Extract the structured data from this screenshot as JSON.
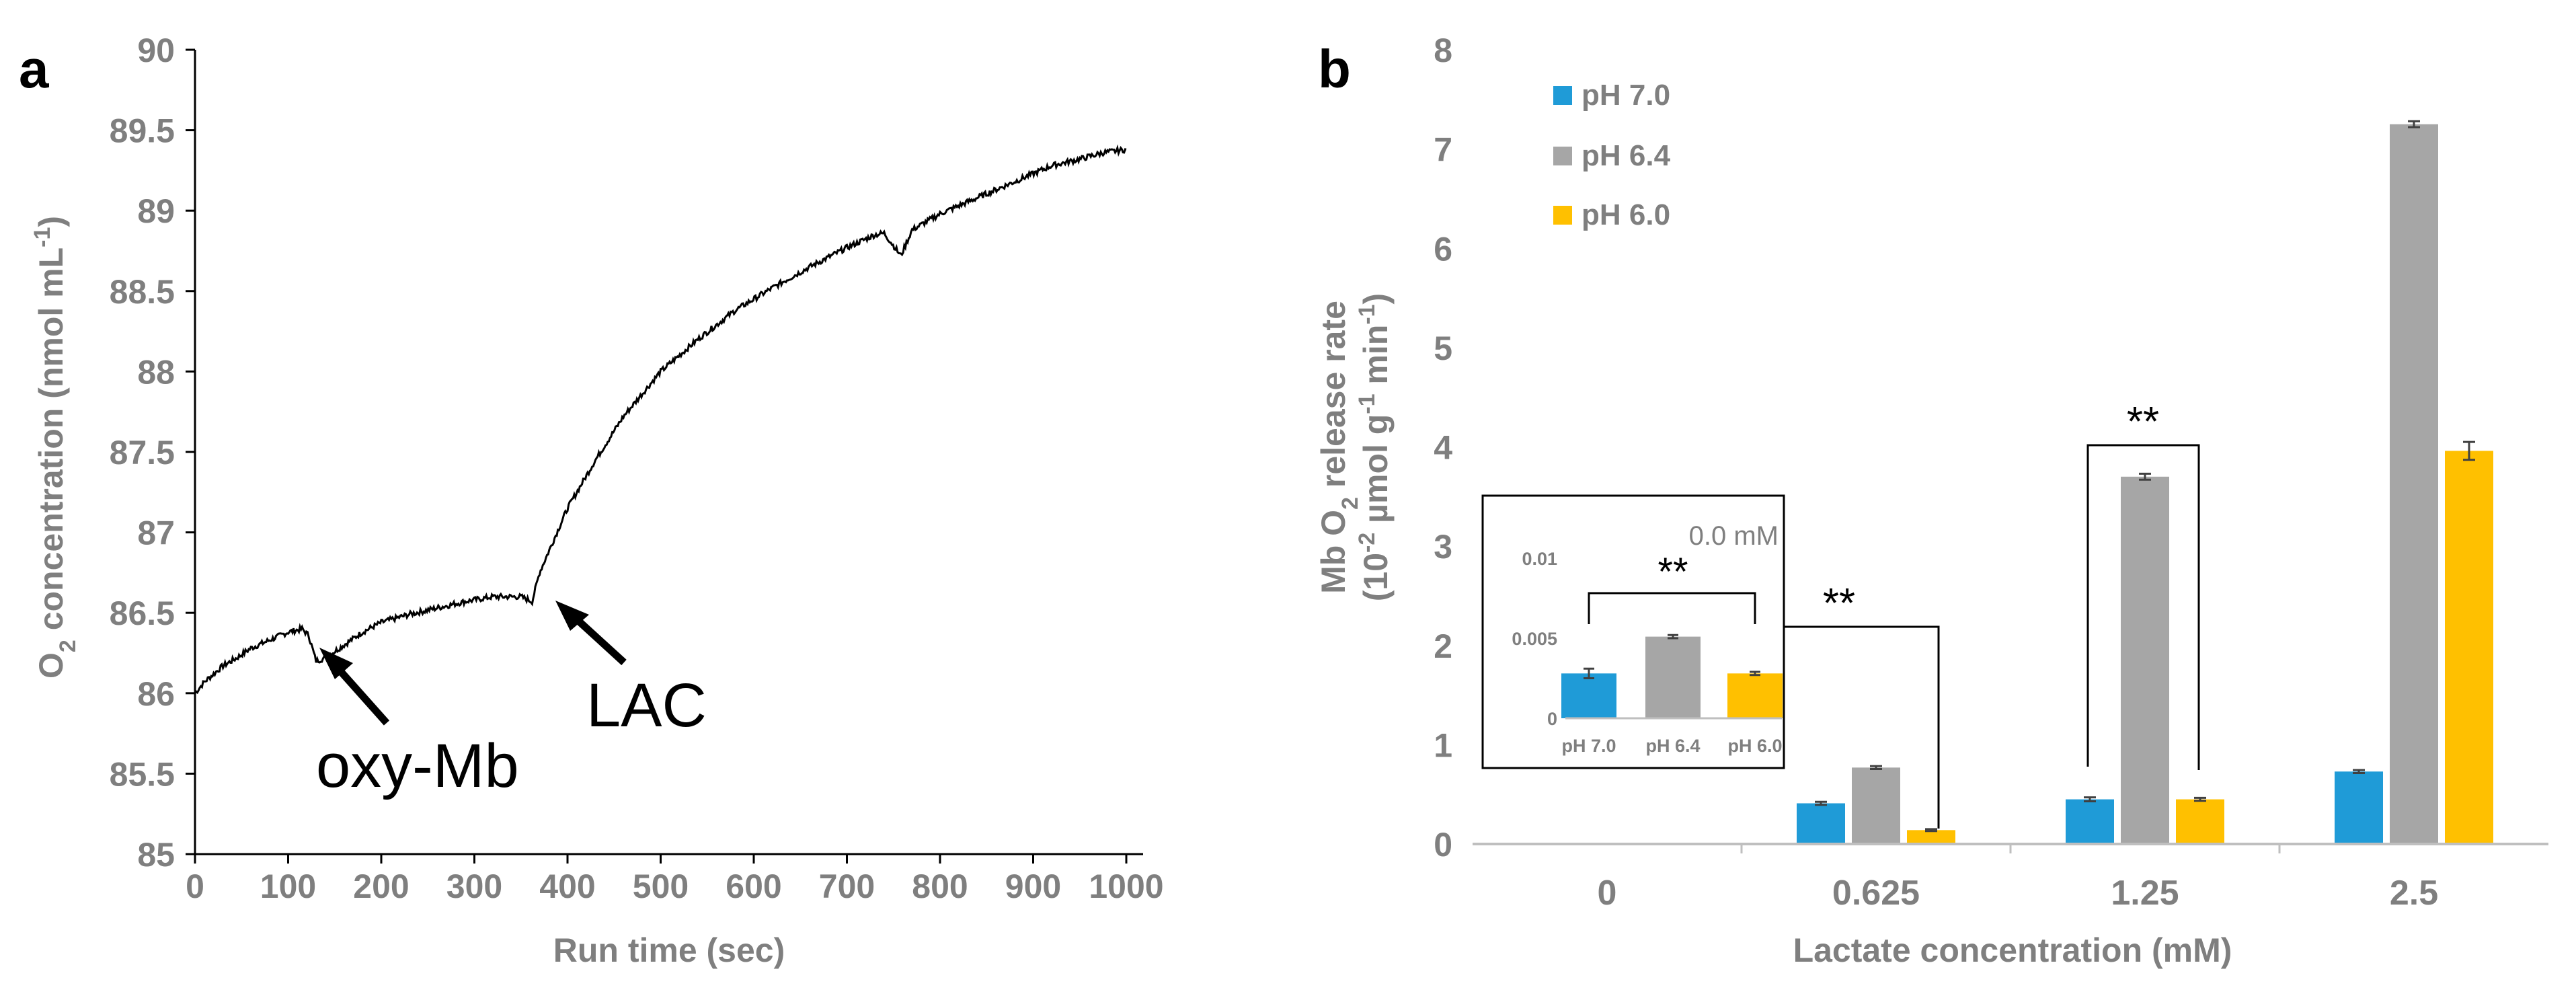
{
  "chart_data": [
    {
      "panel_label": "a",
      "type": "line",
      "xlabel": "Run time (sec)",
      "ylabel_main": "O",
      "ylabel_sub": "2",
      "ylabel_rest": " concentration (nmol mL",
      "ylabel_sup": "-1",
      "ylabel_end": ")",
      "xlim": [
        0,
        1000
      ],
      "ylim": [
        85,
        90
      ],
      "xticks": [
        0,
        100,
        200,
        300,
        400,
        500,
        600,
        700,
        800,
        900,
        1000
      ],
      "yticks": [
        85,
        85.5,
        86,
        86.5,
        87,
        87.5,
        88,
        88.5,
        89,
        89.5,
        90
      ],
      "series": [
        {
          "name": "O2 trace",
          "x": [
            0,
            10,
            20,
            30,
            45,
            60,
            80,
            100,
            115,
            122,
            125,
            130,
            140,
            160,
            180,
            200,
            230,
            260,
            290,
            320,
            350,
            362,
            370,
            385,
            400,
            430,
            460,
            500,
            540,
            580,
            620,
            660,
            700,
            730,
            740,
            758,
            770,
            800,
            840,
            880,
            920,
            950,
            975,
            1000
          ],
          "y": [
            86.0,
            86.07,
            86.12,
            86.17,
            86.22,
            86.28,
            86.33,
            86.38,
            86.4,
            86.36,
            86.3,
            86.2,
            86.22,
            86.3,
            86.38,
            86.44,
            86.49,
            86.53,
            86.57,
            86.6,
            86.6,
            86.57,
            86.75,
            86.95,
            87.15,
            87.45,
            87.72,
            88.0,
            88.2,
            88.38,
            88.52,
            88.65,
            88.77,
            88.85,
            88.86,
            88.72,
            88.88,
            88.98,
            89.08,
            89.18,
            89.28,
            89.32,
            89.36,
            89.38
          ]
        }
      ],
      "annotations": [
        {
          "text": "oxy-Mb",
          "x": 130,
          "y": 86.2
        },
        {
          "text": "LAC",
          "x": 365,
          "y": 86.58
        }
      ]
    },
    {
      "panel_label": "b",
      "type": "bar",
      "xlabel": "Lactate concentration (mM)",
      "ylabel_line1_a": "Mb O",
      "ylabel_line1_sub": "2",
      "ylabel_line1_b": " release rate",
      "ylabel_line2_a": "(10",
      "ylabel_line2_sup1": "-2",
      "ylabel_line2_b": " µmol g",
      "ylabel_line2_sup2": "-1",
      "ylabel_line2_c": " min",
      "ylabel_line2_sup3": "-1",
      "ylabel_line2_d": ")",
      "ylim": [
        0,
        8
      ],
      "yticks": [
        0,
        1,
        2,
        3,
        4,
        5,
        6,
        7,
        8
      ],
      "categories": [
        "0",
        "0.625",
        "1.25",
        "2.5"
      ],
      "series": [
        {
          "name": "pH 7.0",
          "color": "#1f9bd7",
          "values": [
            0.0,
            0.41,
            0.45,
            0.73
          ],
          "errors": [
            0.0,
            0.015,
            0.02,
            0.015
          ]
        },
        {
          "name": "pH 6.4",
          "color": "#a6a6a6",
          "values": [
            0.0,
            0.77,
            3.7,
            7.25
          ],
          "errors": [
            0.0,
            0.015,
            0.03,
            0.03
          ]
        },
        {
          "name": "pH 6.0",
          "color": "#ffc000",
          "values": [
            0.0,
            0.14,
            0.45,
            3.96
          ],
          "errors": [
            0.0,
            0.01,
            0.015,
            0.09
          ]
        }
      ],
      "significance": [
        {
          "label": "**",
          "category": "0.625"
        },
        {
          "label": "**",
          "category": "1.25"
        }
      ],
      "inset": {
        "title": "0.0 mM",
        "ylim": [
          0,
          0.01
        ],
        "yticks": [
          0,
          0.005,
          0.01
        ],
        "ytick_labels": [
          "0",
          "0.005",
          "0.01"
        ],
        "categories": [
          "pH 7.0",
          "pH 6.4",
          "pH 6.0"
        ],
        "values": [
          0.0028,
          0.0051,
          0.0028
        ],
        "errors": [
          0.0003,
          0.0001,
          0.0001
        ],
        "colors": [
          "#1f9bd7",
          "#a6a6a6",
          "#ffc000"
        ],
        "significance": "**"
      }
    }
  ]
}
